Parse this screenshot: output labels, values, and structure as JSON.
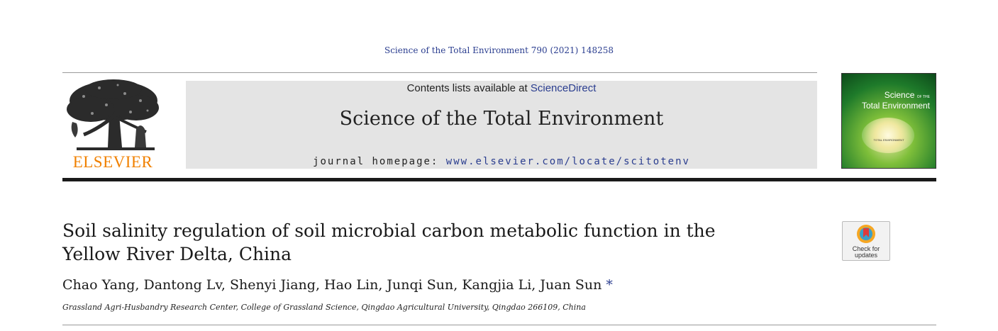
{
  "citation": "Science of the Total Environment 790 (2021) 148258",
  "publisher": {
    "logo_text": "ELSEVIER"
  },
  "banner": {
    "contents_prefix": "Contents lists available at ",
    "contents_link": "ScienceDirect",
    "journal_title": "Science of the Total Environment",
    "homepage_prefix": "journal homepage: ",
    "homepage_url": "www.elsevier.com/locate/scitotenv"
  },
  "cover": {
    "title_line1": "Science",
    "title_small": "OF THE",
    "title_line2": "Total Environment",
    "label": "TOTAL ENVIRONMENT"
  },
  "article": {
    "title_line1": "Soil salinity regulation of soil microbial carbon metabolic function in the",
    "title_line2": "Yellow River Delta, China",
    "authors": "Chao Yang, Dantong Lv, Shenyi Jiang, Hao Lin, Junqi Sun, Kangjia Li, Juan Sun",
    "corresponding_mark": "*",
    "affiliation": "Grassland Agri-Husbandry Research Center, College of Grassland Science, Qingdao Agricultural University, Qingdao 266109, China"
  },
  "badge": {
    "line1": "Check for",
    "line2": "updates"
  },
  "colors": {
    "link": "#2a3d8f",
    "elsevier_orange": "#f08000",
    "banner_bg": "#e4e4e4"
  }
}
